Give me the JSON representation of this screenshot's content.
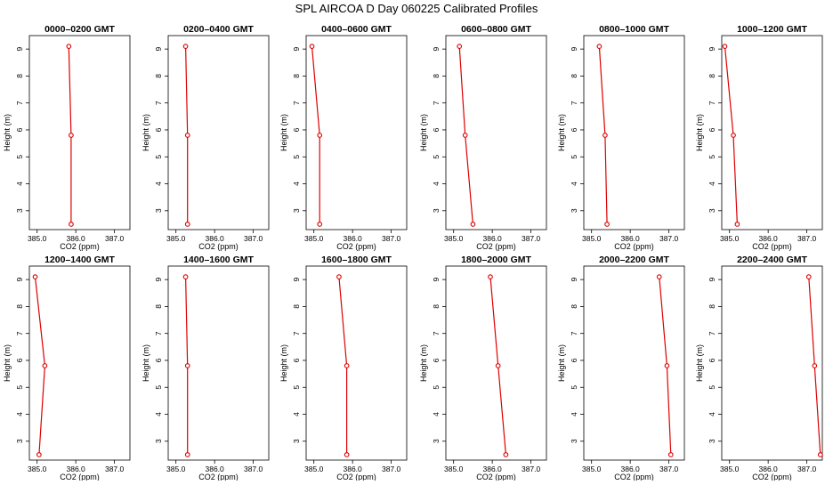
{
  "title": "SPL AIRCOA D  Day 060225  Calibrated Profiles",
  "colors": {
    "series": "#dd0000",
    "axis": "#000000",
    "background": "#ffffff"
  },
  "chart_data": [
    {
      "type": "line",
      "title": "0000–0200 GMT",
      "xlabel": "CO2 (ppm)",
      "ylabel": "Height (m)",
      "xlim": [
        384.8,
        387.4
      ],
      "ylim": [
        2.3,
        9.5
      ],
      "xticks": [
        "385.0",
        "386.0",
        "387.0"
      ],
      "yticks": [
        "3",
        "4",
        "5",
        "6",
        "7",
        "8",
        "9"
      ],
      "x": [
        385.82,
        385.88,
        385.88
      ],
      "y": [
        9.1,
        5.8,
        2.5
      ],
      "marker": "open-circle",
      "grid": false
    },
    {
      "type": "line",
      "title": "0200–0400 GMT",
      "xlabel": "CO2 (ppm)",
      "ylabel": "Height (m)",
      "xlim": [
        384.8,
        387.4
      ],
      "ylim": [
        2.3,
        9.5
      ],
      "xticks": [
        "385.0",
        "386.0",
        "387.0"
      ],
      "yticks": [
        "3",
        "4",
        "5",
        "6",
        "7",
        "8",
        "9"
      ],
      "x": [
        385.25,
        385.3,
        385.3
      ],
      "y": [
        9.1,
        5.8,
        2.5
      ],
      "marker": "open-circle",
      "grid": false
    },
    {
      "type": "line",
      "title": "0400–0600 GMT",
      "xlabel": "CO2 (ppm)",
      "ylabel": "Height (m)",
      "xlim": [
        384.8,
        387.4
      ],
      "ylim": [
        2.3,
        9.5
      ],
      "xticks": [
        "385.0",
        "386.0",
        "387.0"
      ],
      "yticks": [
        "3",
        "4",
        "5",
        "6",
        "7",
        "8",
        "9"
      ],
      "x": [
        384.95,
        385.15,
        385.15
      ],
      "y": [
        9.1,
        5.8,
        2.5
      ],
      "marker": "open-circle",
      "grid": false
    },
    {
      "type": "line",
      "title": "0600–0800 GMT",
      "xlabel": "CO2 (ppm)",
      "ylabel": "Height (m)",
      "xlim": [
        384.8,
        387.4
      ],
      "ylim": [
        2.3,
        9.5
      ],
      "xticks": [
        "385.0",
        "386.0",
        "387.0"
      ],
      "yticks": [
        "3",
        "4",
        "5",
        "6",
        "7",
        "8",
        "9"
      ],
      "x": [
        385.15,
        385.3,
        385.5
      ],
      "y": [
        9.1,
        5.8,
        2.5
      ],
      "marker": "open-circle",
      "grid": false
    },
    {
      "type": "line",
      "title": "0800–1000 GMT",
      "xlabel": "CO2 (ppm)",
      "ylabel": "Height (m)",
      "xlim": [
        384.8,
        387.4
      ],
      "ylim": [
        2.3,
        9.5
      ],
      "xticks": [
        "385.0",
        "386.0",
        "387.0"
      ],
      "yticks": [
        "3",
        "4",
        "5",
        "6",
        "7",
        "8",
        "9"
      ],
      "x": [
        385.2,
        385.35,
        385.4
      ],
      "y": [
        9.1,
        5.8,
        2.5
      ],
      "marker": "open-circle",
      "grid": false
    },
    {
      "type": "line",
      "title": "1000–1200 GMT",
      "xlabel": "CO2 (ppm)",
      "ylabel": "Height (m)",
      "xlim": [
        384.8,
        387.4
      ],
      "ylim": [
        2.3,
        9.5
      ],
      "xticks": [
        "385.0",
        "386.0",
        "387.0"
      ],
      "yticks": [
        "3",
        "4",
        "5",
        "6",
        "7",
        "8",
        "9"
      ],
      "x": [
        384.88,
        385.1,
        385.2
      ],
      "y": [
        9.1,
        5.8,
        2.5
      ],
      "marker": "open-circle",
      "grid": false
    },
    {
      "type": "line",
      "title": "1200–1400 GMT",
      "xlabel": "CO2 (ppm)",
      "ylabel": "Height (m)",
      "xlim": [
        384.8,
        387.4
      ],
      "ylim": [
        2.3,
        9.5
      ],
      "xticks": [
        "385.0",
        "386.0",
        "387.0"
      ],
      "yticks": [
        "3",
        "4",
        "5",
        "6",
        "7",
        "8",
        "9"
      ],
      "x": [
        384.95,
        385.2,
        385.05
      ],
      "y": [
        9.1,
        5.8,
        2.5
      ],
      "marker": "open-circle",
      "grid": false
    },
    {
      "type": "line",
      "title": "1400–1600 GMT",
      "xlabel": "CO2 (ppm)",
      "ylabel": "Height (m)",
      "xlim": [
        384.8,
        387.4
      ],
      "ylim": [
        2.3,
        9.5
      ],
      "xticks": [
        "385.0",
        "386.0",
        "387.0"
      ],
      "yticks": [
        "3",
        "4",
        "5",
        "6",
        "7",
        "8",
        "9"
      ],
      "x": [
        385.25,
        385.3,
        385.3
      ],
      "y": [
        9.1,
        5.8,
        2.5
      ],
      "marker": "open-circle",
      "grid": false
    },
    {
      "type": "line",
      "title": "1600–1800 GMT",
      "xlabel": "CO2 (ppm)",
      "ylabel": "Height (m)",
      "xlim": [
        384.8,
        387.4
      ],
      "ylim": [
        2.3,
        9.5
      ],
      "xticks": [
        "385.0",
        "386.0",
        "387.0"
      ],
      "yticks": [
        "3",
        "4",
        "5",
        "6",
        "7",
        "8",
        "9"
      ],
      "x": [
        385.65,
        385.85,
        385.85
      ],
      "y": [
        9.1,
        5.8,
        2.5
      ],
      "marker": "open-circle",
      "grid": false
    },
    {
      "type": "line",
      "title": "1800–2000 GMT",
      "xlabel": "CO2 (ppm)",
      "ylabel": "Height (m)",
      "xlim": [
        384.8,
        387.4
      ],
      "ylim": [
        2.3,
        9.5
      ],
      "xticks": [
        "385.0",
        "386.0",
        "387.0"
      ],
      "yticks": [
        "3",
        "4",
        "5",
        "6",
        "7",
        "8",
        "9"
      ],
      "x": [
        385.95,
        386.15,
        386.35
      ],
      "y": [
        9.1,
        5.8,
        2.5
      ],
      "marker": "open-circle",
      "grid": false
    },
    {
      "type": "line",
      "title": "2000–2200 GMT",
      "xlabel": "CO2 (ppm)",
      "ylabel": "Height (m)",
      "xlim": [
        384.8,
        387.4
      ],
      "ylim": [
        2.3,
        9.5
      ],
      "xticks": [
        "385.0",
        "386.0",
        "387.0"
      ],
      "yticks": [
        "3",
        "4",
        "5",
        "6",
        "7",
        "8",
        "9"
      ],
      "x": [
        386.75,
        386.95,
        387.05
      ],
      "y": [
        9.1,
        5.8,
        2.5
      ],
      "marker": "open-circle",
      "grid": false
    },
    {
      "type": "line",
      "title": "2200–2400 GMT",
      "xlabel": "CO2 (ppm)",
      "ylabel": "Height (m)",
      "xlim": [
        384.8,
        387.4
      ],
      "ylim": [
        2.3,
        9.5
      ],
      "xticks": [
        "385.0",
        "386.0",
        "387.0"
      ],
      "yticks": [
        "3",
        "4",
        "5",
        "6",
        "7",
        "8",
        "9"
      ],
      "x": [
        387.05,
        387.2,
        387.35
      ],
      "y": [
        9.1,
        5.8,
        2.5
      ],
      "marker": "open-circle",
      "grid": false
    }
  ]
}
